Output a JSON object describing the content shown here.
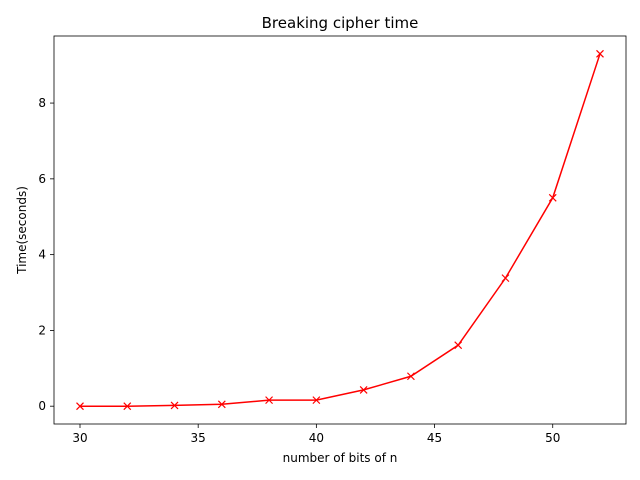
{
  "chart_data": {
    "type": "line",
    "title": "Breaking cipher time",
    "xlabel": "number of bits of n",
    "ylabel": "Time(seconds)",
    "xlim": [
      28.9,
      53.1
    ],
    "ylim": [
      -0.47,
      9.77
    ],
    "xticks": [
      30,
      35,
      40,
      45,
      50
    ],
    "yticks": [
      0,
      2,
      4,
      6,
      8
    ],
    "grid": false,
    "legend": "none",
    "series": [
      {
        "color": "#ff0000",
        "marker": "x",
        "x": [
          30,
          32,
          34,
          36,
          38,
          40,
          42,
          44,
          46,
          48,
          50,
          52
        ],
        "y": [
          0.0,
          0.0,
          0.02,
          0.05,
          0.16,
          0.16,
          0.43,
          0.79,
          1.61,
          3.38,
          5.5,
          9.3
        ]
      }
    ]
  }
}
